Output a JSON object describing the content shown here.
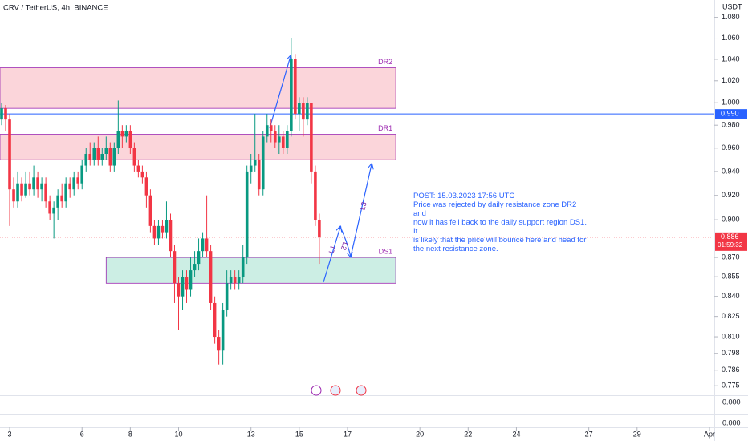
{
  "chart_data": {
    "type": "candlestick",
    "title": "CRV / TetherUS, 4h, BINANCE",
    "y_axis_unit": "USDT",
    "x": [
      2.667,
      2.833,
      3,
      3.167,
      3.333,
      3.5,
      3.667,
      3.833,
      4,
      4.167,
      4.333,
      4.5,
      4.667,
      4.833,
      5,
      5.167,
      5.333,
      5.5,
      5.667,
      5.833,
      6,
      6.167,
      6.333,
      6.5,
      6.667,
      6.833,
      7,
      7.167,
      7.333,
      7.5,
      7.667,
      7.833,
      8,
      8.167,
      8.333,
      8.5,
      8.667,
      8.833,
      9,
      9.167,
      9.333,
      9.5,
      9.667,
      9.833,
      10,
      10.167,
      10.333,
      10.5,
      10.667,
      10.833,
      11,
      11.167,
      11.333,
      11.5,
      11.667,
      11.833,
      12,
      12.167,
      12.333,
      12.5,
      12.667,
      12.833,
      13,
      13.167,
      13.333,
      13.5,
      13.667,
      13.833,
      14,
      14.167,
      14.333,
      14.5,
      14.667,
      14.833,
      15,
      15.167,
      15.333,
      15.5,
      15.667,
      15.833
    ],
    "open": [
      0.985,
      0.995,
      0.985,
      0.925,
      0.915,
      0.93,
      0.92,
      0.93,
      0.925,
      0.935,
      0.925,
      0.93,
      0.915,
      0.905,
      0.91,
      0.92,
      0.915,
      0.93,
      0.925,
      0.935,
      0.93,
      0.945,
      0.955,
      0.95,
      0.96,
      0.95,
      0.955,
      0.96,
      0.945,
      0.96,
      0.975,
      0.97,
      0.975,
      0.96,
      0.945,
      0.94,
      0.935,
      0.92,
      0.895,
      0.885,
      0.895,
      0.89,
      0.9,
      0.875,
      0.85,
      0.84,
      0.855,
      0.845,
      0.86,
      0.865,
      0.875,
      0.885,
      0.875,
      0.835,
      0.81,
      0.8,
      0.83,
      0.85,
      0.855,
      0.85,
      0.855,
      0.87,
      0.94,
      0.945,
      0.95,
      0.925,
      0.97,
      0.98,
      0.975,
      0.965,
      0.97,
      0.96,
      0.975,
      1.04,
      0.99,
      1.0,
      0.985,
      1.0,
      0.94,
      0.9
    ],
    "high": [
      1.0,
      0.998,
      0.99,
      0.935,
      0.94,
      0.935,
      0.94,
      0.94,
      0.945,
      0.94,
      0.935,
      0.935,
      0.92,
      0.915,
      0.925,
      0.93,
      0.935,
      0.935,
      0.94,
      0.94,
      0.95,
      0.96,
      0.965,
      0.965,
      0.97,
      0.96,
      0.97,
      0.965,
      0.965,
      1.002,
      0.98,
      0.98,
      0.98,
      0.965,
      0.95,
      0.945,
      0.94,
      0.925,
      0.9,
      0.9,
      0.9,
      0.915,
      0.905,
      0.88,
      0.855,
      0.86,
      0.86,
      0.87,
      0.875,
      0.885,
      0.89,
      0.92,
      0.88,
      0.84,
      0.815,
      0.835,
      0.86,
      0.86,
      0.86,
      0.86,
      0.88,
      0.945,
      0.955,
      0.99,
      0.955,
      0.975,
      0.99,
      0.985,
      0.98,
      0.98,
      0.975,
      0.98,
      1.06,
      1.045,
      1.005,
      1.005,
      1.005,
      1.0,
      0.945,
      0.905
    ],
    "low": [
      0.98,
      0.975,
      0.895,
      0.91,
      0.91,
      0.915,
      0.918,
      0.92,
      0.92,
      0.918,
      0.915,
      0.91,
      0.9,
      0.885,
      0.9,
      0.91,
      0.91,
      0.918,
      0.92,
      0.925,
      0.925,
      0.94,
      0.945,
      0.945,
      0.945,
      0.945,
      0.95,
      0.94,
      0.94,
      0.955,
      0.96,
      0.965,
      0.955,
      0.94,
      0.935,
      0.93,
      0.91,
      0.89,
      0.88,
      0.88,
      0.885,
      0.885,
      0.87,
      0.835,
      0.815,
      0.83,
      0.835,
      0.84,
      0.855,
      0.86,
      0.87,
      0.87,
      0.83,
      0.805,
      0.79,
      0.79,
      0.825,
      0.845,
      0.845,
      0.845,
      0.85,
      0.865,
      0.93,
      0.94,
      0.92,
      0.92,
      0.965,
      0.965,
      0.96,
      0.955,
      0.955,
      0.955,
      0.97,
      0.985,
      0.975,
      0.97,
      0.98,
      0.93,
      0.895,
      0.865
    ],
    "close": [
      0.995,
      0.985,
      0.925,
      0.915,
      0.93,
      0.92,
      0.93,
      0.925,
      0.935,
      0.925,
      0.93,
      0.915,
      0.905,
      0.91,
      0.92,
      0.915,
      0.93,
      0.925,
      0.935,
      0.93,
      0.945,
      0.955,
      0.95,
      0.96,
      0.95,
      0.955,
      0.96,
      0.945,
      0.96,
      0.975,
      0.97,
      0.975,
      0.96,
      0.945,
      0.94,
      0.935,
      0.92,
      0.895,
      0.885,
      0.895,
      0.89,
      0.9,
      0.875,
      0.85,
      0.84,
      0.855,
      0.845,
      0.86,
      0.865,
      0.875,
      0.885,
      0.875,
      0.835,
      0.81,
      0.8,
      0.83,
      0.85,
      0.855,
      0.85,
      0.855,
      0.87,
      0.94,
      0.945,
      0.95,
      0.925,
      0.97,
      0.98,
      0.975,
      0.965,
      0.97,
      0.96,
      0.975,
      1.04,
      0.99,
      1.0,
      0.985,
      1.0,
      0.94,
      0.9,
      0.886
    ],
    "up_color": "#089981",
    "down_color": "#f23645",
    "xlim": [
      2.6,
      32.2
    ],
    "xticks": [
      3,
      6,
      8,
      10,
      13,
      15,
      17,
      20,
      22,
      24,
      27,
      29,
      {
        "value": 32,
        "label": "Apr"
      }
    ],
    "ylim": [
      0.769,
      1.097
    ],
    "log_scale": true,
    "yticks": [
      {
        "value": 1.08,
        "label": "1.080"
      },
      {
        "value": 1.06,
        "label": "1.060"
      },
      {
        "value": 1.04,
        "label": "1.040"
      },
      {
        "value": 1.02,
        "label": "1.020"
      },
      {
        "value": 1.0,
        "label": "1.000"
      },
      {
        "value": 0.98,
        "label": "0.980"
      },
      {
        "value": 0.96,
        "label": "0.960"
      },
      {
        "value": 0.94,
        "label": "0.940"
      },
      {
        "value": 0.92,
        "label": "0.920"
      },
      {
        "value": 0.9,
        "label": "0.900"
      },
      {
        "value": 0.87,
        "label": "0.870"
      },
      0.855,
      {
        "value": 0.84,
        "label": "0.840"
      },
      0.825,
      {
        "value": 0.81,
        "label": "0.810"
      },
      0.798,
      0.786,
      0.775
    ],
    "lower_pane_ticks": [
      "0.000",
      "0.000"
    ],
    "zones": [
      {
        "name": "DR2",
        "top": 1.032,
        "bottom": 0.995,
        "start": 2.6,
        "end": 19.0,
        "color": "#f7a1ad"
      },
      {
        "name": "DR1",
        "top": 0.972,
        "bottom": 0.95,
        "start": 2.6,
        "end": 19.0,
        "color": "#f7a1ad"
      },
      {
        "name": "DS1",
        "top": 0.87,
        "bottom": 0.85,
        "start": 7.0,
        "end": 19.0,
        "color": "#8fd9c4"
      }
    ],
    "horizontal_line": {
      "value": 0.99,
      "label": "0.990",
      "color": "#2962ff"
    },
    "last_price": {
      "value": 0.886,
      "countdown": "01:59:32",
      "color": "#f23645"
    },
    "drawing_labels": [
      "L1",
      "L2",
      "L3"
    ],
    "annotation": {
      "title": "POST: 15.03.2023 17:56 UTC",
      "lines": [
        "Price was rejected by daily resistance zone DR2 and",
        "now it has fell back to the daily support region DS1. It",
        "is likely that the price will bounce here and head for",
        "the next resistance zone."
      ]
    }
  }
}
